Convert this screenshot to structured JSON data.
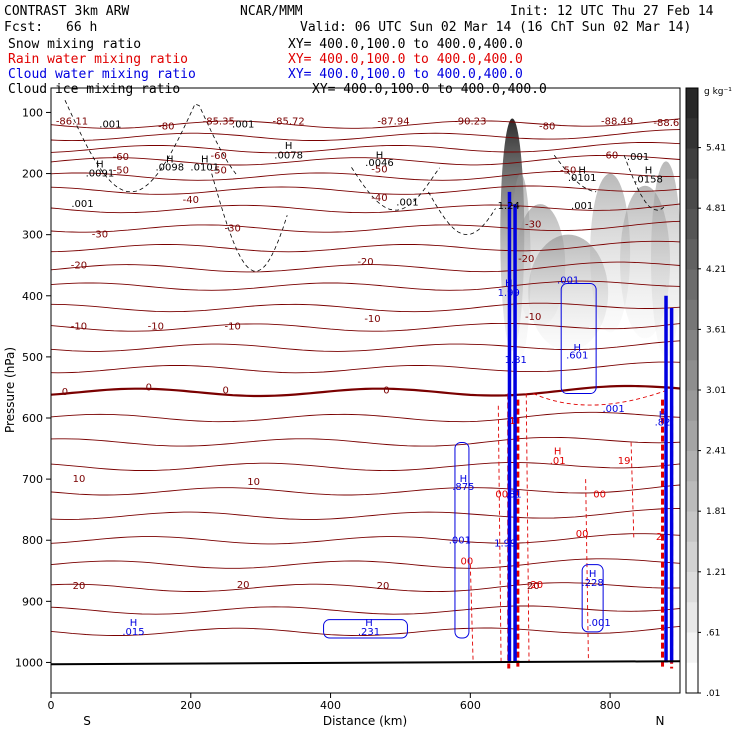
{
  "header": {
    "title": "CONTRAST  3km ARW",
    "center": "NCAR/MMM",
    "init": "Init: 12 UTC Thu 27 Feb 14",
    "fcst_label": "Fcst:",
    "fcst_value": "66 h",
    "valid": "Valid: 06 UTC Sun 02 Mar 14 (16 ChT Sun 02 Mar 14)"
  },
  "legend": [
    {
      "label": "Snow mixing ratio",
      "color": "#000000",
      "xy": "XY= 400.0,100.0 to 400.0,400.0"
    },
    {
      "label": "Rain water mixing ratio",
      "color": "#e00000",
      "xy": "XY= 400.0,100.0 to 400.0,400.0"
    },
    {
      "label": "Cloud water mixing ratio",
      "color": "#0000e0",
      "xy": "XY= 400.0,100.0 to 400.0,400.0"
    },
    {
      "label": "Cloud ice mixing ratio",
      "color": "#000000",
      "xy": "XY= 400.0,100.0 to 400.0,400.0"
    }
  ],
  "chart_data": {
    "type": "contour-cross-section",
    "xlabel": "Distance (km)",
    "ylabel": "Pressure (hPa)",
    "xlim": [
      0,
      900
    ],
    "ylim": [
      1050,
      60
    ],
    "x_ticks": [
      0,
      200,
      400,
      600,
      800
    ],
    "y_ticks": [
      100,
      200,
      300,
      400,
      500,
      600,
      700,
      800,
      900,
      1000
    ],
    "x_end_labels": {
      "left": "S",
      "right": "N"
    },
    "colorbar": {
      "unit": "g kg⁻¹",
      "levels": [
        "5.41",
        "4.81",
        "4.21",
        "3.61",
        "3.01",
        "2.41",
        "1.81",
        "1.21",
        ".61",
        ".01"
      ],
      "range": [
        0.01,
        6.0
      ]
    },
    "temperature_contours": {
      "color": "#7a0000",
      "levels": [
        -80,
        -60,
        -50,
        -40,
        -30,
        -20,
        -10,
        0,
        10,
        20
      ],
      "labels": [
        {
          "text": "-86.11",
          "x": 30,
          "p": 120
        },
        {
          "text": "-85.35",
          "x": 240,
          "p": 120
        },
        {
          "text": "-85.72",
          "x": 340,
          "p": 120
        },
        {
          "text": "-87.94",
          "x": 490,
          "p": 120
        },
        {
          "text": "-90.23",
          "x": 600,
          "p": 120
        },
        {
          "text": "-88.49",
          "x": 810,
          "p": 120
        },
        {
          "text": "-88.62",
          "x": 885,
          "p": 122
        },
        {
          "text": "-80",
          "x": 165,
          "p": 128
        },
        {
          "text": "-80",
          "x": 710,
          "p": 128
        },
        {
          "text": "-60",
          "x": 100,
          "p": 178
        },
        {
          "text": "-60",
          "x": 240,
          "p": 176
        },
        {
          "text": "-60",
          "x": 800,
          "p": 175
        },
        {
          "text": "-50",
          "x": 100,
          "p": 200
        },
        {
          "text": "-50",
          "x": 240,
          "p": 200
        },
        {
          "text": "-50",
          "x": 470,
          "p": 198
        },
        {
          "text": "-50",
          "x": 740,
          "p": 200
        },
        {
          "text": "-40",
          "x": 200,
          "p": 248
        },
        {
          "text": "-40",
          "x": 470,
          "p": 245
        },
        {
          "text": "-30",
          "x": 70,
          "p": 305
        },
        {
          "text": "-30",
          "x": 260,
          "p": 295
        },
        {
          "text": "-30",
          "x": 690,
          "p": 288
        },
        {
          "text": "-20",
          "x": 40,
          "p": 355
        },
        {
          "text": "-20",
          "x": 450,
          "p": 350
        },
        {
          "text": "-20",
          "x": 680,
          "p": 345
        },
        {
          "text": "-10",
          "x": 40,
          "p": 455
        },
        {
          "text": "-10",
          "x": 150,
          "p": 455
        },
        {
          "text": "-10",
          "x": 260,
          "p": 455
        },
        {
          "text": "-10",
          "x": 460,
          "p": 443
        },
        {
          "text": "-10",
          "x": 690,
          "p": 440
        },
        {
          "text": "0",
          "x": 20,
          "p": 562
        },
        {
          "text": "0",
          "x": 140,
          "p": 555
        },
        {
          "text": "0",
          "x": 250,
          "p": 560
        },
        {
          "text": "0",
          "x": 480,
          "p": 560
        },
        {
          "text": "10",
          "x": 40,
          "p": 705
        },
        {
          "text": "10",
          "x": 290,
          "p": 710
        },
        {
          "text": "20",
          "x": 40,
          "p": 880
        },
        {
          "text": "20",
          "x": 275,
          "p": 878
        },
        {
          "text": "20",
          "x": 475,
          "p": 880
        },
        {
          "text": "20",
          "x": 690,
          "p": 880
        }
      ]
    },
    "snow_ice_labels": [
      {
        "text": ".001",
        "x": 85,
        "p": 125
      },
      {
        "text": ".001",
        "x": 275,
        "p": 125
      },
      {
        "text": "H",
        "x": 340,
        "p": 160
      },
      {
        "text": ".0078",
        "x": 340,
        "p": 175
      },
      {
        "text": "H",
        "x": 470,
        "p": 175
      },
      {
        "text": ".0046",
        "x": 470,
        "p": 188
      },
      {
        "text": "H",
        "x": 70,
        "p": 190
      },
      {
        "text": ".0091",
        "x": 70,
        "p": 205
      },
      {
        "text": "H",
        "x": 170,
        "p": 182
      },
      {
        "text": ".0098",
        "x": 170,
        "p": 195
      },
      {
        "text": "H",
        "x": 220,
        "p": 182
      },
      {
        "text": ".0101",
        "x": 220,
        "p": 195
      },
      {
        "text": ".001",
        "x": 45,
        "p": 255
      },
      {
        "text": ".001",
        "x": 510,
        "p": 252
      },
      {
        "text": "1.24",
        "x": 655,
        "p": 258
      },
      {
        "text": "H",
        "x": 760,
        "p": 200
      },
      {
        "text": ".0101",
        "x": 760,
        "p": 212
      },
      {
        "text": ".001",
        "x": 840,
        "p": 178
      },
      {
        "text": "H",
        "x": 855,
        "p": 200
      },
      {
        "text": ".0158",
        "x": 855,
        "p": 215
      },
      {
        "text": ".001",
        "x": 760,
        "p": 258
      }
    ],
    "cloud_water_labels": [
      {
        "text": "H",
        "x": 118,
        "p": 940
      },
      {
        "text": ".015",
        "x": 118,
        "p": 955
      },
      {
        "text": "H",
        "x": 455,
        "p": 940
      },
      {
        "text": ".231",
        "x": 455,
        "p": 955
      },
      {
        "text": "H",
        "x": 590,
        "p": 705
      },
      {
        "text": ".875",
        "x": 590,
        "p": 718
      },
      {
        "text": ".001",
        "x": 585,
        "p": 805
      },
      {
        "text": "H",
        "x": 655,
        "p": 385
      },
      {
        "text": "1.99",
        "x": 655,
        "p": 400
      },
      {
        "text": ".001",
        "x": 740,
        "p": 380
      },
      {
        "text": "H",
        "x": 753,
        "p": 490
      },
      {
        "text": ".601",
        "x": 753,
        "p": 503
      },
      {
        "text": ".001",
        "x": 805,
        "p": 590
      },
      {
        "text": "H",
        "x": 775,
        "p": 860
      },
      {
        "text": ".228",
        "x": 775,
        "p": 875
      },
      {
        "text": ".001",
        "x": 785,
        "p": 940
      },
      {
        "text": "1.81",
        "x": 665,
        "p": 510
      },
      {
        "text": "1.99",
        "x": 650,
        "p": 810
      },
      {
        "text": ".81",
        "x": 662,
        "p": 730
      },
      {
        "text": "H",
        "x": 875,
        "p": 600
      },
      {
        "text": ".82",
        "x": 875,
        "p": 612
      }
    ],
    "rain_labels": [
      {
        "text": "1",
        "x": 660,
        "p": 610
      },
      {
        "text": "H",
        "x": 725,
        "p": 660
      },
      {
        "text": ".01",
        "x": 725,
        "p": 675
      },
      {
        "text": "19",
        "x": 820,
        "p": 675
      },
      {
        "text": "00",
        "x": 645,
        "p": 730
      },
      {
        "text": "00",
        "x": 785,
        "p": 730
      },
      {
        "text": "00",
        "x": 760,
        "p": 795
      },
      {
        "text": "00",
        "x": 595,
        "p": 840
      },
      {
        "text": "2",
        "x": 870,
        "p": 800
      },
      {
        "text": "20",
        "x": 695,
        "p": 878
      }
    ]
  }
}
